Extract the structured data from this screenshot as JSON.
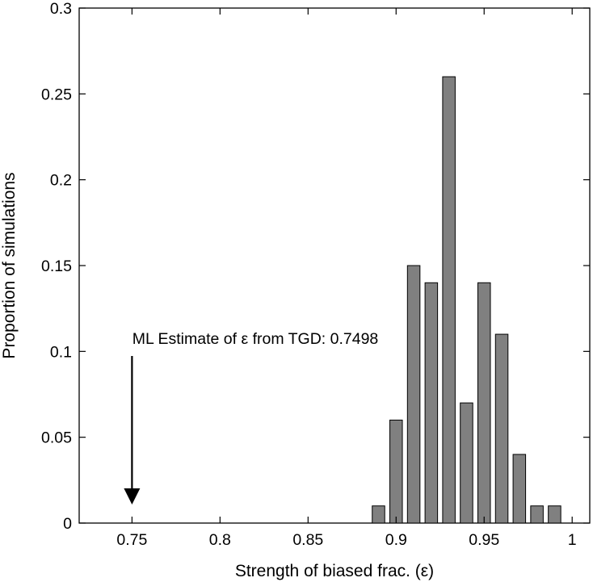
{
  "chart_data": {
    "type": "bar",
    "title": "",
    "xlabel": "Strength of biased frac. (ε)",
    "ylabel": "Proportion of simulations",
    "xlim": [
      0.72,
      1.01
    ],
    "ylim": [
      0,
      0.3
    ],
    "x_ticks": [
      "0.75",
      "0.8",
      "0.85",
      "0.9",
      "0.95",
      "1"
    ],
    "y_ticks": [
      "0",
      "0.05",
      "0.1",
      "0.15",
      "0.2",
      "0.25",
      "0.3"
    ],
    "x": [
      0.89,
      0.9,
      0.91,
      0.92,
      0.93,
      0.94,
      0.95,
      0.96,
      0.97,
      0.98,
      0.99
    ],
    "values": [
      0.01,
      0.06,
      0.15,
      0.14,
      0.26,
      0.07,
      0.14,
      0.11,
      0.04,
      0.01,
      0.01
    ],
    "bar_color": "#808080",
    "grid": false,
    "annotation": {
      "text": "ML Estimate of ε from TGD: 0.7498",
      "arrow_x": 0.75
    }
  }
}
